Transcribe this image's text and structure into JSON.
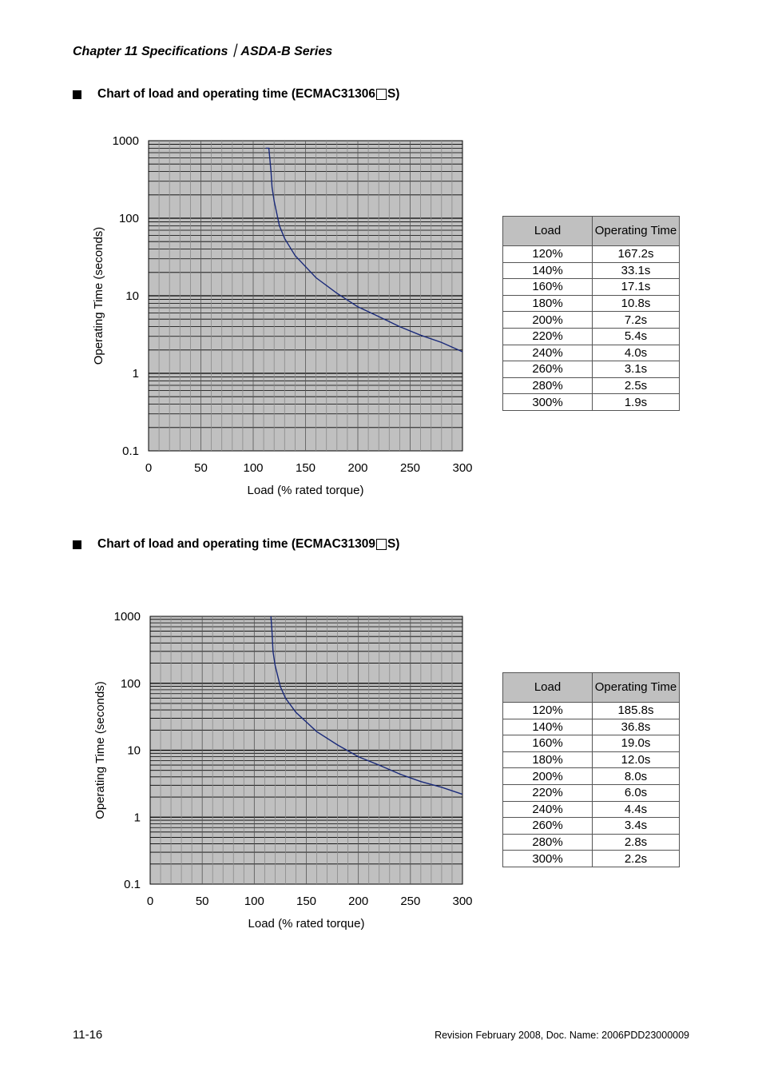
{
  "header": {
    "text": "Chapter 11  Specifications｜ASDA-B Series"
  },
  "sections": [
    {
      "title_before": "Chart of load and operating time (ECMAC31306",
      "title_after": "S)",
      "table": {
        "headers": [
          "Load",
          "Operating Time"
        ],
        "rows": [
          [
            "120%",
            "167.2s"
          ],
          [
            "140%",
            "33.1s"
          ],
          [
            "160%",
            "17.1s"
          ],
          [
            "180%",
            "10.8s"
          ],
          [
            "200%",
            "7.2s"
          ],
          [
            "220%",
            "5.4s"
          ],
          [
            "240%",
            "4.0s"
          ],
          [
            "260%",
            "3.1s"
          ],
          [
            "280%",
            "2.5s"
          ],
          [
            "300%",
            "1.9s"
          ]
        ]
      }
    },
    {
      "title_before": "Chart of load and operating time (ECMAC31309",
      "title_after": "S)",
      "table": {
        "headers": [
          "Load",
          "Operating Time"
        ],
        "rows": [
          [
            "120%",
            "185.8s"
          ],
          [
            "140%",
            "36.8s"
          ],
          [
            "160%",
            "19.0s"
          ],
          [
            "180%",
            "12.0s"
          ],
          [
            "200%",
            "8.0s"
          ],
          [
            "220%",
            "6.0s"
          ],
          [
            "240%",
            "4.4s"
          ],
          [
            "260%",
            "3.4s"
          ],
          [
            "280%",
            "2.8s"
          ],
          [
            "300%",
            "2.2s"
          ]
        ]
      }
    }
  ],
  "chart_data": [
    {
      "type": "line",
      "title": "",
      "xlabel": "Load (% rated torque)",
      "ylabel": "Operating Time (seconds)",
      "xlim": [
        0,
        300
      ],
      "ylim": [
        0.1,
        1000
      ],
      "yscale": "log",
      "grid": true,
      "background": "#c0c0c0",
      "line_color": "#1a2a7a",
      "x_ticks": [
        "0",
        "50",
        "100",
        "150",
        "200",
        "250",
        "300"
      ],
      "y_ticks": [
        "0.1",
        "1",
        "10",
        "100",
        "1000"
      ],
      "series": [
        {
          "x": [
            112,
            115,
            117,
            118,
            120,
            125,
            130,
            140,
            160,
            180,
            200,
            220,
            240,
            260,
            280,
            300
          ],
          "y": [
            800,
            800,
            400,
            250,
            167.2,
            80,
            55,
            33.1,
            17.1,
            10.8,
            7.2,
            5.4,
            4.0,
            3.1,
            2.5,
            1.9
          ]
        }
      ]
    },
    {
      "type": "line",
      "title": "",
      "xlabel": "Load (% rated torque)",
      "ylabel": "Operating Time (seconds)",
      "xlim": [
        0,
        300
      ],
      "ylim": [
        0.1,
        1000
      ],
      "yscale": "log",
      "grid": true,
      "background": "#c0c0c0",
      "line_color": "#1a2a7a",
      "x_ticks": [
        "0",
        "50",
        "100",
        "150",
        "200",
        "250",
        "300"
      ],
      "y_ticks": [
        "0.1",
        "1",
        "10",
        "100",
        "1000"
      ],
      "series": [
        {
          "x": [
            116,
            117,
            118,
            120,
            125,
            130,
            140,
            160,
            180,
            200,
            220,
            240,
            260,
            280,
            300
          ],
          "y": [
            1000,
            600,
            300,
            185.8,
            90,
            60,
            36.8,
            19.0,
            12.0,
            8.0,
            6.0,
            4.4,
            3.4,
            2.8,
            2.2
          ]
        }
      ]
    }
  ],
  "footer": {
    "page": "11-16",
    "revision": "Revision February 2008, Doc. Name: 2006PDD23000009"
  }
}
